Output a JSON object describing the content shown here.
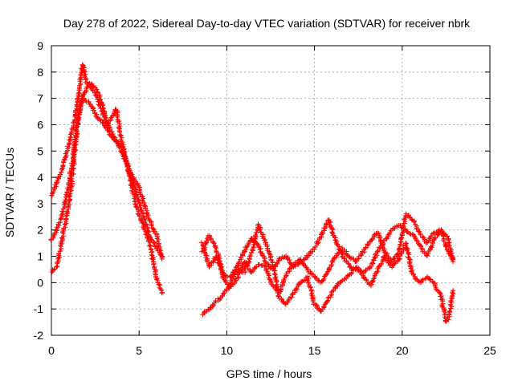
{
  "chart_data": {
    "type": "scatter",
    "title": "Day 278 of 2022, Sidereal Day-to-day VTEC variation (SDTVAR) for receiver nbrk",
    "xlabel": "GPS time / hours",
    "ylabel": "SDTVAR / TECUs",
    "xlim": [
      0,
      25
    ],
    "ylim": [
      -2,
      9
    ],
    "x_ticks": [
      "0",
      "5",
      "10",
      "15",
      "20",
      "25"
    ],
    "y_ticks": [
      "-2",
      "-1",
      "0",
      "1",
      "2",
      "3",
      "4",
      "5",
      "6",
      "7",
      "8",
      "9"
    ],
    "grid": true,
    "marker": "+",
    "series": [
      {
        "name": "SDTVAR",
        "color": "#ff0000",
        "tracks": [
          [
            [
              0.0,
              3.3
            ],
            [
              0.3,
              3.8
            ],
            [
              0.6,
              4.3
            ],
            [
              0.9,
              5.0
            ],
            [
              1.2,
              5.8
            ],
            [
              1.4,
              6.5
            ],
            [
              1.6,
              7.3
            ],
            [
              1.7,
              8.0
            ],
            [
              1.8,
              8.3
            ],
            [
              2.0,
              7.6
            ],
            [
              2.5,
              7.2
            ],
            [
              3.0,
              6.3
            ],
            [
              3.5,
              5.6
            ],
            [
              4.0,
              5.0
            ],
            [
              4.5,
              4.2
            ],
            [
              5.0,
              3.6
            ],
            [
              5.5,
              2.5
            ],
            [
              6.0,
              1.8
            ],
            [
              6.3,
              0.9
            ]
          ],
          [
            [
              0.0,
              1.6
            ],
            [
              0.3,
              2.0
            ],
            [
              0.6,
              2.6
            ],
            [
              0.9,
              3.4
            ],
            [
              1.2,
              4.6
            ],
            [
              1.4,
              5.6
            ],
            [
              1.6,
              6.5
            ],
            [
              1.8,
              7.0
            ],
            [
              2.2,
              6.8
            ],
            [
              2.6,
              6.3
            ],
            [
              3.0,
              6.0
            ],
            [
              3.5,
              5.5
            ],
            [
              4.0,
              5.2
            ],
            [
              4.4,
              4.3
            ],
            [
              4.8,
              3.5
            ],
            [
              5.2,
              2.6
            ],
            [
              5.6,
              1.8
            ],
            [
              6.0,
              1.3
            ],
            [
              6.3,
              1.0
            ]
          ],
          [
            [
              0.0,
              0.4
            ],
            [
              0.3,
              0.6
            ],
            [
              0.6,
              1.6
            ],
            [
              0.9,
              2.6
            ],
            [
              1.2,
              4.0
            ],
            [
              1.4,
              5.5
            ],
            [
              1.7,
              7.0
            ],
            [
              2.2,
              7.6
            ],
            [
              2.7,
              7.2
            ],
            [
              3.2,
              6.0
            ],
            [
              3.7,
              6.6
            ],
            [
              4.0,
              5.4
            ],
            [
              4.4,
              4.2
            ],
            [
              4.8,
              3.0
            ],
            [
              5.2,
              2.2
            ],
            [
              5.6,
              1.5
            ],
            [
              6.0,
              0.2
            ],
            [
              6.3,
              -0.4
            ]
          ],
          [
            [
              8.6,
              1.5
            ],
            [
              9.0,
              0.6
            ],
            [
              9.4,
              1.0
            ],
            [
              9.8,
              0.3
            ],
            [
              10.2,
              0.2
            ],
            [
              10.6,
              0.6
            ],
            [
              11.0,
              1.2
            ],
            [
              11.4,
              1.7
            ],
            [
              11.8,
              1.4
            ],
            [
              12.2,
              0.8
            ],
            [
              12.6,
              0.5
            ],
            [
              13.0,
              0.9
            ],
            [
              13.4,
              1.0
            ],
            [
              13.8,
              0.6
            ],
            [
              14.2,
              0.8
            ],
            [
              14.6,
              1.0
            ],
            [
              15.0,
              1.3
            ],
            [
              15.4,
              1.8
            ],
            [
              15.8,
              2.4
            ],
            [
              16.2,
              1.6
            ],
            [
              16.6,
              1.0
            ],
            [
              17.0,
              0.6
            ],
            [
              17.4,
              0.5
            ],
            [
              17.8,
              0.4
            ],
            [
              18.2,
              0.6
            ],
            [
              18.6,
              1.2
            ],
            [
              19.0,
              1.6
            ],
            [
              19.4,
              2.0
            ],
            [
              19.8,
              2.2
            ],
            [
              20.2,
              2.0
            ],
            [
              20.6,
              1.8
            ],
            [
              21.0,
              1.4
            ],
            [
              21.4,
              1.0
            ],
            [
              21.8,
              1.6
            ],
            [
              22.2,
              2.0
            ],
            [
              22.6,
              1.7
            ],
            [
              22.9,
              0.8
            ]
          ],
          [
            [
              8.6,
              1.2
            ],
            [
              9.0,
              1.8
            ],
            [
              9.4,
              1.3
            ],
            [
              9.8,
              0.2
            ],
            [
              10.2,
              -0.2
            ],
            [
              10.6,
              0.2
            ],
            [
              11.0,
              0.8
            ],
            [
              11.4,
              0.4
            ],
            [
              11.8,
              0.7
            ],
            [
              12.2,
              0.6
            ],
            [
              12.6,
              -0.1
            ],
            [
              13.0,
              -0.4
            ],
            [
              13.4,
              0.3
            ],
            [
              13.8,
              0.7
            ],
            [
              14.2,
              0.9
            ],
            [
              14.6,
              0.5
            ],
            [
              15.0,
              0.2
            ],
            [
              15.4,
              0.0
            ],
            [
              15.8,
              0.5
            ],
            [
              16.2,
              1.0
            ],
            [
              16.6,
              1.3
            ],
            [
              17.0,
              1.0
            ],
            [
              17.4,
              0.8
            ],
            [
              17.8,
              1.2
            ],
            [
              18.2,
              1.6
            ],
            [
              18.6,
              1.9
            ],
            [
              19.0,
              1.2
            ],
            [
              19.4,
              0.8
            ],
            [
              19.8,
              1.1
            ],
            [
              20.2,
              2.6
            ],
            [
              20.6,
              2.4
            ],
            [
              21.0,
              1.9
            ],
            [
              21.4,
              1.5
            ],
            [
              21.8,
              1.9
            ],
            [
              22.2,
              2.0
            ],
            [
              22.6,
              1.2
            ],
            [
              22.9,
              0.9
            ]
          ],
          [
            [
              8.6,
              -1.2
            ],
            [
              9.0,
              -1.0
            ],
            [
              9.4,
              -0.7
            ],
            [
              9.8,
              -0.5
            ],
            [
              10.2,
              0.0
            ],
            [
              10.6,
              0.5
            ],
            [
              11.0,
              0.4
            ],
            [
              11.4,
              1.1
            ],
            [
              11.8,
              2.2
            ],
            [
              12.2,
              1.5
            ],
            [
              12.6,
              0.8
            ],
            [
              13.0,
              -0.6
            ],
            [
              13.4,
              -0.8
            ],
            [
              13.8,
              -0.4
            ],
            [
              14.2,
              0.0
            ],
            [
              14.6,
              0.2
            ],
            [
              15.0,
              -0.8
            ],
            [
              15.4,
              -1.1
            ],
            [
              15.8,
              -0.6
            ],
            [
              16.2,
              -0.2
            ],
            [
              16.6,
              0.1
            ],
            [
              17.0,
              0.3
            ],
            [
              17.4,
              0.6
            ],
            [
              17.8,
              0.2
            ],
            [
              18.2,
              -0.1
            ],
            [
              18.6,
              0.5
            ],
            [
              19.0,
              1.0
            ],
            [
              19.4,
              0.6
            ],
            [
              19.8,
              0.9
            ],
            [
              20.2,
              1.5
            ],
            [
              20.6,
              0.3
            ],
            [
              21.0,
              0.0
            ],
            [
              21.4,
              0.2
            ],
            [
              21.8,
              0.0
            ],
            [
              22.2,
              -0.5
            ],
            [
              22.5,
              -1.5
            ],
            [
              22.7,
              -1.2
            ],
            [
              22.9,
              -0.3
            ]
          ]
        ]
      }
    ]
  }
}
